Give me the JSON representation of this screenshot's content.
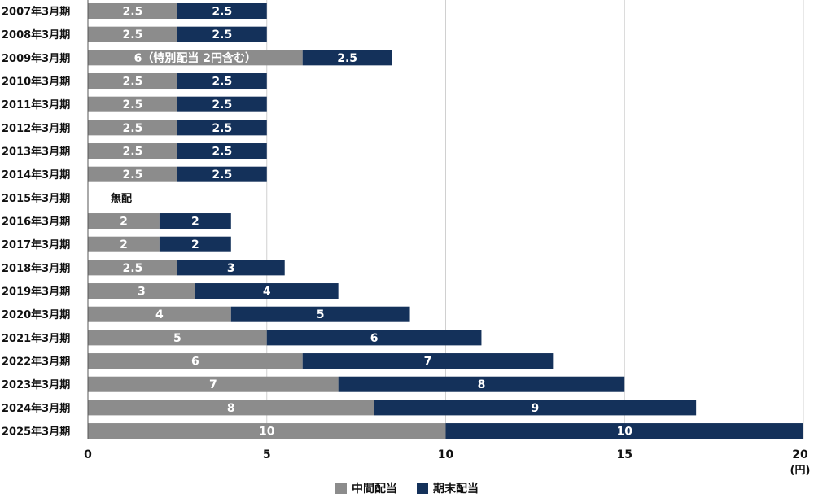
{
  "chart_data": {
    "type": "bar",
    "orientation": "horizontal",
    "stacked": true,
    "categories": [
      "2007年3月期",
      "2008年3月期",
      "2009年3月期",
      "2010年3月期",
      "2011年3月期",
      "2012年3月期",
      "2013年3月期",
      "2014年3月期",
      "2015年3月期",
      "2016年3月期",
      "2017年3月期",
      "2018年3月期",
      "2019年3月期",
      "2020年3月期",
      "2021年3月期",
      "2022年3月期",
      "2023年3月期",
      "2024年3月期",
      "2025年3月期"
    ],
    "series": [
      {
        "name": "中間配当",
        "color": "#8c8c8c",
        "values": [
          2.5,
          2.5,
          6,
          2.5,
          2.5,
          2.5,
          2.5,
          2.5,
          0,
          2,
          2,
          2.5,
          3,
          4,
          5,
          6,
          7,
          8,
          10
        ],
        "labels": [
          "2.5",
          "2.5",
          "6（特別配当 2円含む）",
          "2.5",
          "2.5",
          "2.5",
          "2.5",
          "2.5",
          "",
          "2",
          "2",
          "2.5",
          "3",
          "4",
          "5",
          "6",
          "7",
          "8",
          "10"
        ]
      },
      {
        "name": "期末配当",
        "color": "#14315a",
        "values": [
          2.5,
          2.5,
          2.5,
          2.5,
          2.5,
          2.5,
          2.5,
          2.5,
          0,
          2,
          2,
          3,
          4,
          5,
          6,
          7,
          8,
          9,
          10
        ],
        "labels": [
          "2.5",
          "2.5",
          "2.5",
          "2.5",
          "2.5",
          "2.5",
          "2.5",
          "2.5",
          "",
          "2",
          "2",
          "3",
          "4",
          "5",
          "6",
          "7",
          "8",
          "9",
          "10"
        ]
      }
    ],
    "annotations": [
      {
        "category": "2015年3月期",
        "text": "無配"
      }
    ],
    "xlim": [
      0,
      20
    ],
    "xticks": [
      0,
      5,
      10,
      15,
      20
    ],
    "xtick_labels": [
      "0",
      "5",
      "10",
      "15",
      "20"
    ],
    "unit_label": "(円)",
    "grid": true,
    "legend_position": "bottom-center"
  }
}
